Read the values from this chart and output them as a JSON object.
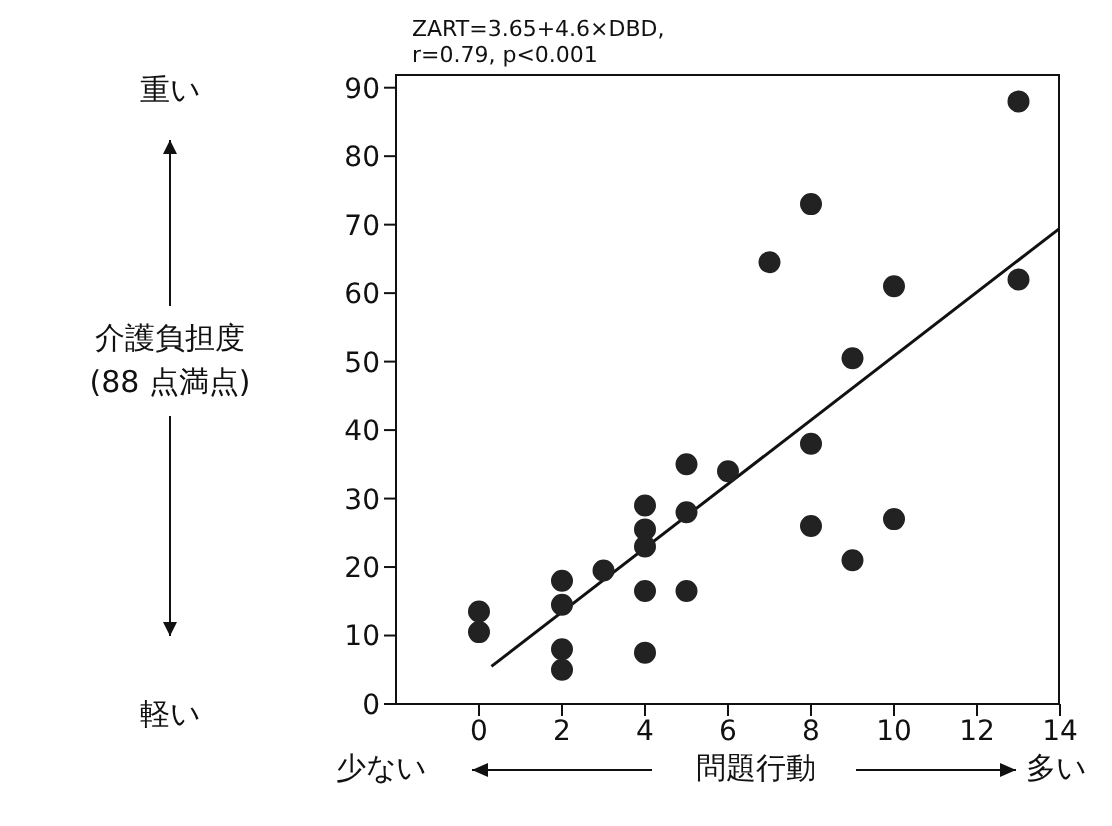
{
  "chart_data": {
    "type": "scatter",
    "title": "ZART=3.65+4.6×DBD,",
    "subtitle": "r=0.79, p<0.001",
    "xlabel": "問題行動",
    "ylabel": "介護負担度\n(88 点満点)",
    "annotations": [
      "重い",
      "軽い",
      "少ない",
      "多い"
    ],
    "xlim": [
      -2,
      14
    ],
    "xticks": [
      0,
      2,
      4,
      6,
      8,
      10,
      12,
      14
    ],
    "ylim": [
      0,
      92
    ],
    "yticks": [
      0,
      10,
      20,
      30,
      40,
      50,
      60,
      70,
      80,
      90
    ],
    "grid": false,
    "legend": false,
    "marker": "circle",
    "series": [
      {
        "color": "#222222",
        "x": [
          0,
          0,
          2,
          2,
          2,
          2,
          3,
          4,
          4,
          4,
          4,
          4,
          5,
          5,
          5,
          6,
          7,
          8,
          8,
          8,
          9,
          9,
          10,
          10,
          13,
          13
        ],
        "values": [
          13.5,
          10.5,
          18,
          14.5,
          8,
          5,
          19.5,
          29,
          25.5,
          23,
          16.5,
          7.5,
          35,
          28,
          16.5,
          34,
          64.5,
          73,
          38,
          26,
          50.5,
          21,
          61,
          27,
          88,
          62
        ]
      },
      {
        "type": "line",
        "color": "#111111",
        "x": [
          0.3,
          14
        ],
        "values": [
          5.5,
          69.5
        ],
        "line_style": "solid",
        "marker": "none"
      }
    ]
  }
}
